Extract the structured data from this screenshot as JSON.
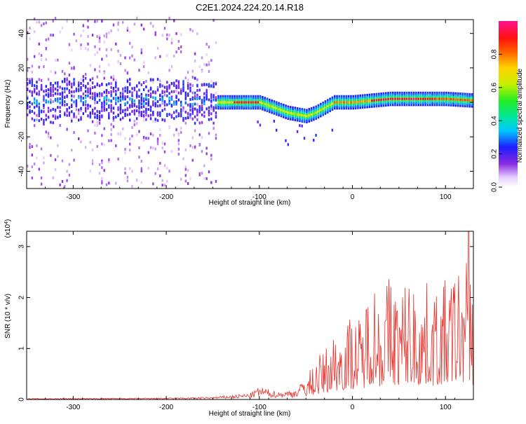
{
  "title": "C2E1.2024.224.20.14.R18",
  "chart_data": [
    {
      "type": "heatmap",
      "xlabel": "Height of straight line (km)",
      "ylabel": "Frequency (Hz)",
      "xlim": [
        -350,
        130
      ],
      "ylim": [
        -50,
        48
      ],
      "x_ticks": [
        -300,
        -200,
        -100,
        0,
        100
      ],
      "y_ticks": [
        -40,
        -20,
        0,
        20,
        40
      ],
      "x_tick_labels": [
        "-300",
        "-200",
        "-100",
        "0",
        "100"
      ],
      "y_tick_labels": [
        "-40",
        "-20",
        "0",
        "20",
        "40"
      ],
      "grid": false,
      "colorbar": {
        "label": "Normalized spectral amplitude",
        "range": [
          0,
          1
        ],
        "ticks": [
          0,
          0.2,
          0.4,
          0.6,
          0.8
        ],
        "tick_labels": [
          "0.0",
          "0.2",
          "0.4",
          "0.6",
          "0.8"
        ],
        "colormap": "rainbow (white-violet-blue-cyan-green-yellow-red-magenta)"
      },
      "ridge": {
        "description": "frequency centroid of strongest signal vs height",
        "x": [
          -350,
          -300,
          -250,
          -200,
          -150,
          -140,
          -120,
          -100,
          -90,
          -80,
          -70,
          -60,
          -50,
          -40,
          -30,
          -20,
          -10,
          0,
          20,
          40,
          60,
          80,
          100,
          130
        ],
        "y": [
          1,
          1,
          1,
          1,
          0,
          0,
          0,
          0,
          -2,
          -4,
          -6,
          -7,
          -8,
          -6,
          -3,
          0,
          0,
          0,
          1,
          2,
          2,
          2,
          2,
          1
        ]
      }
    },
    {
      "type": "line",
      "xlabel": "Height of straight line (km)",
      "ylabel": "SNR (10 * v/v)",
      "y_scale_label": "(x10",
      "y_scale_exponent": "4",
      "y_scale_suffix": ")",
      "xlim": [
        -350,
        130
      ],
      "ylim": [
        0,
        3.3
      ],
      "x_ticks": [
        -300,
        -200,
        -100,
        0,
        100
      ],
      "y_ticks": [
        0,
        1,
        2,
        3
      ],
      "x_tick_labels": [
        "-300",
        "-200",
        "-100",
        "0",
        "100"
      ],
      "y_tick_labels": [
        "0",
        "1",
        "2",
        "3"
      ],
      "grid": false,
      "series": [
        {
          "color": "#e8302a",
          "envelope": {
            "x": [
              -350,
              -200,
              -150,
              -110,
              -100,
              -80,
              -60,
              -50,
              -40,
              -30,
              -20,
              -10,
              0,
              10,
              20,
              30,
              40,
              50,
              60,
              70,
              80,
              90,
              100,
              110,
              120,
              125,
              130
            ],
            "peak": [
              0.02,
              0.03,
              0.05,
              0.12,
              0.25,
              0.15,
              0.2,
              0.45,
              0.8,
              1.0,
              1.35,
              1.55,
              1.7,
              1.6,
              2.6,
              2.1,
              2.55,
              2.2,
              2.5,
              2.2,
              2.3,
              2.2,
              2.35,
              2.6,
              2.8,
              3.3,
              2.2
            ]
          }
        }
      ]
    }
  ],
  "colors": {
    "line": "#e8302a",
    "axis": "#000000"
  }
}
